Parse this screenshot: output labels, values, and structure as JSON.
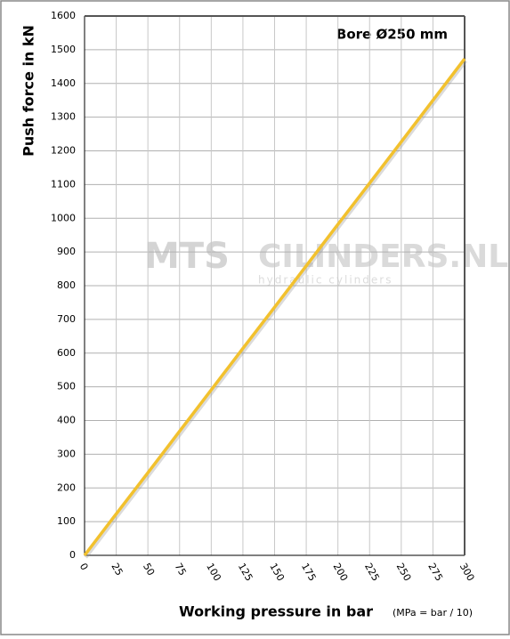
{
  "chart_data": {
    "type": "line",
    "title": "Bore Ø250 mm",
    "y_label": "Push force in kN",
    "x_label": "Working pressure in bar",
    "x_note": "(MPa = bar / 10)",
    "watermark": [
      "MTS",
      "CILINDERS.NL",
      "hydraulic cylinders"
    ],
    "x": [
      0,
      25,
      50,
      75,
      100,
      125,
      150,
      175,
      200,
      225,
      250,
      275,
      300
    ],
    "series": [
      {
        "name": "Bore Ø250 mm",
        "color": "#f2c12e",
        "values": [
          0,
          123,
          245,
          368,
          491,
          614,
          736,
          859,
          982,
          1104,
          1227,
          1350,
          1473
        ]
      }
    ],
    "xlim": [
      0,
      300
    ],
    "xticks": [
      0,
      25,
      50,
      75,
      100,
      125,
      150,
      175,
      200,
      225,
      250,
      275,
      300
    ],
    "ylim": [
      0,
      1600
    ],
    "yticks": [
      0,
      100,
      200,
      300,
      400,
      500,
      600,
      700,
      800,
      900,
      1000,
      1100,
      1200,
      1300,
      1400,
      1500,
      1600
    ],
    "grid": true
  }
}
